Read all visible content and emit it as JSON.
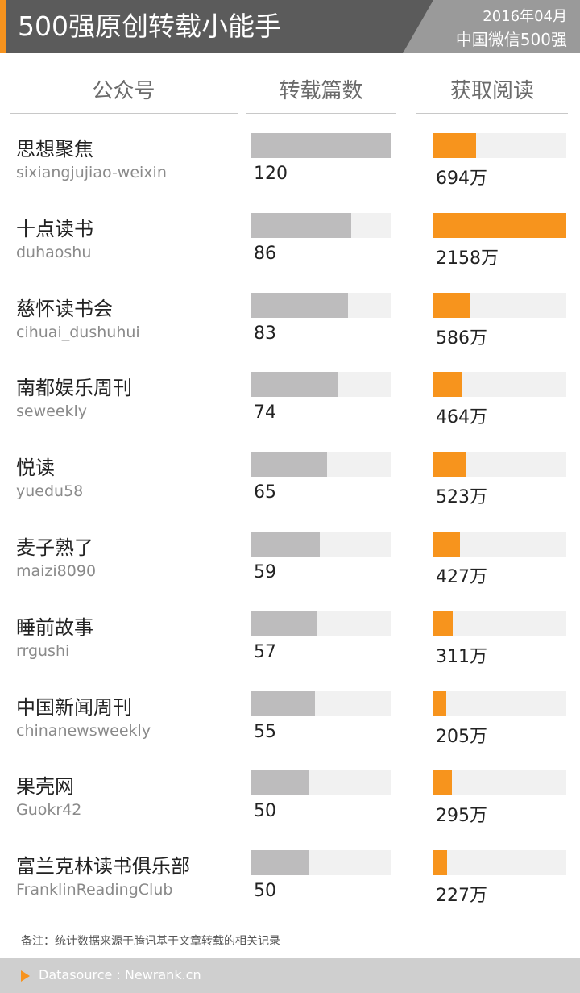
{
  "header": {
    "title": "500强原创转载小能手",
    "date": "2016年04月",
    "subtitle": "中国微信500强"
  },
  "columns": {
    "account": "公众号",
    "reposts": "转载篇数",
    "reads": "获取阅读"
  },
  "chart_data": {
    "type": "bar",
    "categories": [
      "思想聚焦",
      "十点读书",
      "慈怀读书会",
      "南都娱乐周刊",
      "悦读",
      "麦子熟了",
      "睡前故事",
      "中国新闻周刊",
      "果壳网",
      "富兰克林读书俱乐部"
    ],
    "handles": [
      "sixiangjujiao-weixin",
      "duhaoshu",
      "cihuai_dushuhui",
      "seweekly",
      "yuedu58",
      "maizi8090",
      "rrgushi",
      "chinanewsweekly",
      "Guokr42",
      "FranklinReadingClub"
    ],
    "series": [
      {
        "name": "转载篇数",
        "values": [
          120,
          86,
          83,
          74,
          65,
          59,
          57,
          55,
          50,
          50
        ],
        "labels": [
          "120",
          "86",
          "83",
          "74",
          "65",
          "59",
          "57",
          "55",
          "50",
          "50"
        ],
        "max": 120,
        "color": "#bdbcbd"
      },
      {
        "name": "获取阅读",
        "values": [
          694,
          2158,
          586,
          464,
          523,
          427,
          311,
          205,
          295,
          227
        ],
        "labels": [
          "694万",
          "2158万",
          "586万",
          "464万",
          "523万",
          "427万",
          "311万",
          "205万",
          "295万",
          "227万"
        ],
        "max": 2158,
        "color": "#f7941d"
      }
    ]
  },
  "note": "备注：统计数据来源于腾讯基于文章转载的相关记录",
  "footer": {
    "datasource": "Datasource : Newrank.cn"
  }
}
